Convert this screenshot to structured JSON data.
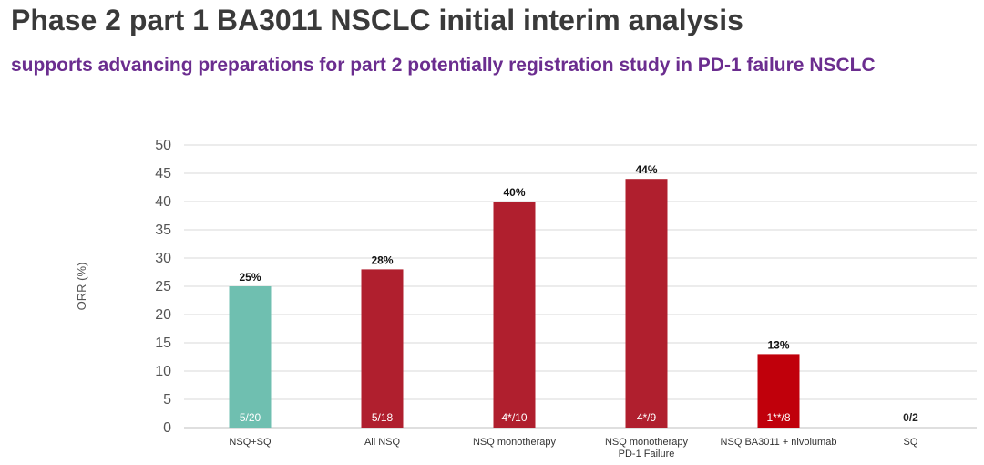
{
  "header": {
    "title": "Phase 2 part 1 BA3011 NSCLC initial interim analysis",
    "subtitle": "supports advancing preparations for part 2 potentially registration study in PD-1 failure NSCLC"
  },
  "chart_data": {
    "type": "bar",
    "ylabel": "ORR (%)",
    "xlabel": "",
    "ylim": [
      0,
      50
    ],
    "yticks": [
      0,
      5,
      10,
      15,
      20,
      25,
      30,
      35,
      40,
      45,
      50
    ],
    "grid": true,
    "categories": [
      [
        "NSQ+SQ"
      ],
      [
        "All NSQ"
      ],
      [
        "NSQ monotherapy"
      ],
      [
        "NSQ monotherapy",
        "PD-1 Failure"
      ],
      [
        "NSQ BA3011 + nivolumab"
      ],
      [
        "SQ"
      ]
    ],
    "values": [
      25,
      28,
      40,
      44,
      13,
      0
    ],
    "value_labels": [
      "25%",
      "28%",
      "40%",
      "44%",
      "13%",
      ""
    ],
    "n_labels": [
      "5/20",
      "5/18",
      "4*/10",
      "4*/9",
      "1**/8",
      "0/2"
    ],
    "colors": [
      "#6fbfb0",
      "#b01f2e",
      "#b01f2e",
      "#b01f2e",
      "#c0000b",
      "#b01f2e"
    ]
  }
}
